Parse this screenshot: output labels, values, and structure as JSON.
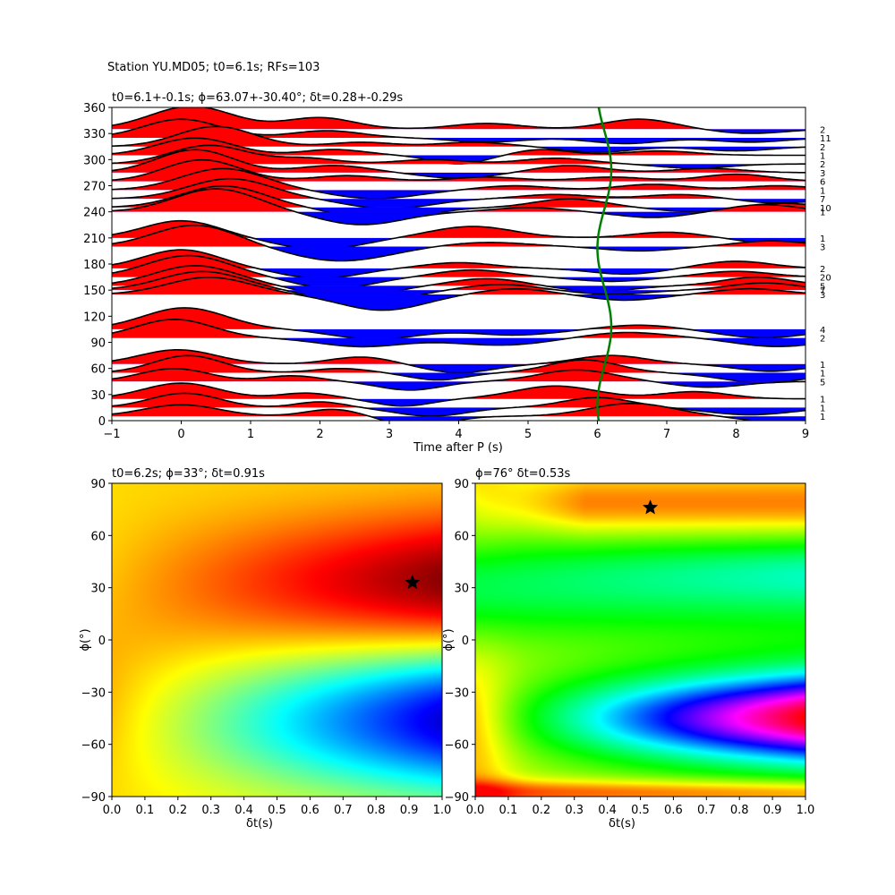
{
  "suptitle": "Station YU.MD05; t0=6.1s; RFs=103",
  "top_panel": {
    "title": "t0=6.1+-0.1s; ϕ=63.07+-30.40°; δt=0.28+-0.29s",
    "xlabel": "Time after P (s)"
  },
  "left_panel": {
    "title": "t0=6.2s; ϕ=33°; δt=0.91s",
    "xlabel": "δt(s)",
    "ylabel": "ϕ(°)"
  },
  "right_panel": {
    "title": "ϕ=76° δt=0.53s",
    "xlabel": "δt(s)",
    "ylabel": "ϕ(°)"
  },
  "chart_data": [
    {
      "type": "line",
      "chart": "receiver-function-section",
      "xlim": [
        -1,
        9
      ],
      "ylim": [
        0,
        360
      ],
      "xticks": [
        -1,
        0,
        1,
        2,
        3,
        4,
        5,
        6,
        7,
        8,
        9
      ],
      "yticks": [
        0,
        30,
        60,
        90,
        120,
        150,
        180,
        210,
        240,
        270,
        300,
        330,
        360
      ],
      "fill_colors": {
        "positive": "#ff0000",
        "negative": "#0000ff"
      },
      "t0_curve_color": "#008000",
      "t0_curve": {
        "mean": 6.1,
        "amplitude": 0.1,
        "period_deg": 180,
        "phase_deg": 63
      },
      "traces": [
        {
          "baz": 5,
          "count": "1",
          "peaks": [
            [
              0,
              0.8,
              0.55
            ],
            [
              2.2,
              0.5,
              0.4
            ],
            [
              3.4,
              -0.7,
              0.45
            ],
            [
              6.5,
              0.9,
              0.6
            ],
            [
              8.6,
              -0.4,
              0.5
            ]
          ]
        },
        {
          "baz": 15,
          "count": "1",
          "peaks": [
            [
              0.05,
              1.0,
              0.5
            ],
            [
              2.0,
              0.4,
              0.35
            ],
            [
              3.6,
              -0.6,
              0.5
            ],
            [
              6.0,
              0.7,
              0.5
            ],
            [
              8.2,
              -0.5,
              0.6
            ]
          ]
        },
        {
          "baz": 25,
          "count": "1",
          "peaks": [
            [
              0.0,
              1.1,
              0.55
            ],
            [
              1.8,
              0.4,
              0.4
            ],
            [
              3.2,
              -0.5,
              0.4
            ],
            [
              5.4,
              0.9,
              0.6
            ],
            [
              7.4,
              0.5,
              0.5
            ]
          ]
        },
        {
          "baz": 45,
          "count": "5",
          "peaks": [
            [
              -0.1,
              0.9,
              0.5
            ],
            [
              1.6,
              0.4,
              0.4
            ],
            [
              3.3,
              -0.6,
              0.45
            ],
            [
              5.7,
              0.8,
              0.55
            ],
            [
              7.6,
              -0.4,
              0.5
            ]
          ]
        },
        {
          "baz": 55,
          "count": "1",
          "peaks": [
            [
              0.1,
              1.2,
              0.5
            ],
            [
              2.3,
              0.3,
              0.4
            ],
            [
              3.7,
              -0.5,
              0.4
            ],
            [
              5.8,
              0.9,
              0.5
            ],
            [
              8.4,
              -0.7,
              0.6
            ]
          ]
        },
        {
          "baz": 65,
          "count": "1",
          "peaks": [
            [
              -0.05,
              1.0,
              0.55
            ],
            [
              2.6,
              0.5,
              0.45
            ],
            [
              4.0,
              -0.6,
              0.5
            ],
            [
              6.2,
              0.6,
              0.5
            ],
            [
              8.5,
              -0.5,
              0.5
            ]
          ]
        },
        {
          "baz": 95,
          "count": "2",
          "peaks": [
            [
              -0.1,
              1.3,
              0.55
            ],
            [
              2.6,
              -0.6,
              0.6
            ],
            [
              4.6,
              -0.5,
              0.7
            ],
            [
              6.4,
              0.4,
              0.6
            ],
            [
              8.6,
              -0.6,
              0.6
            ]
          ]
        },
        {
          "baz": 105,
          "count": "4",
          "peaks": [
            [
              0.05,
              1.5,
              0.6
            ],
            [
              2.8,
              -0.7,
              0.6
            ],
            [
              4.8,
              -0.4,
              0.6
            ],
            [
              6.6,
              0.3,
              0.5
            ],
            [
              8.4,
              -0.6,
              0.6
            ]
          ]
        },
        {
          "baz": 145,
          "count": "3",
          "peaks": [
            [
              0.4,
              1.2,
              0.6
            ],
            [
              2.9,
              -1.1,
              0.6
            ],
            [
              4.8,
              0.4,
              0.5
            ],
            [
              6.4,
              -0.4,
              0.5
            ],
            [
              8.2,
              0.4,
              0.5
            ]
          ]
        },
        {
          "baz": 150,
          "count": "7",
          "peaks": [
            [
              0.3,
              1.3,
              0.6
            ],
            [
              2.6,
              -1.0,
              0.6
            ],
            [
              4.6,
              0.4,
              0.5
            ],
            [
              6.2,
              -0.3,
              0.5
            ],
            [
              8.4,
              0.5,
              0.5
            ]
          ]
        },
        {
          "baz": 155,
          "count": "5",
          "peaks": [
            [
              0.2,
              1.4,
              0.6
            ],
            [
              2.4,
              -0.9,
              0.55
            ],
            [
              4.4,
              0.5,
              0.5
            ],
            [
              6.0,
              -0.4,
              0.5
            ],
            [
              8.3,
              0.6,
              0.5
            ]
          ]
        },
        {
          "baz": 165,
          "count": "20",
          "peaks": [
            [
              0.1,
              1.5,
              0.6
            ],
            [
              2.2,
              -0.8,
              0.55
            ],
            [
              4.2,
              0.5,
              0.5
            ],
            [
              6.2,
              -0.3,
              0.5
            ],
            [
              8.0,
              0.4,
              0.5
            ]
          ]
        },
        {
          "baz": 175,
          "count": "2",
          "peaks": [
            [
              0.0,
              1.3,
              0.55
            ],
            [
              2.0,
              -0.7,
              0.55
            ],
            [
              4.0,
              0.4,
              0.5
            ],
            [
              6.4,
              -0.4,
              0.5
            ],
            [
              8.0,
              0.5,
              0.5
            ]
          ]
        },
        {
          "baz": 200,
          "count": "3",
          "peaks": [
            [
              0.2,
              1.5,
              0.6
            ],
            [
              2.3,
              -1.0,
              0.7
            ],
            [
              4.4,
              0.3,
              0.6
            ],
            [
              6.6,
              -0.3,
              0.5
            ],
            [
              8.5,
              0.4,
              0.5
            ]
          ]
        },
        {
          "baz": 210,
          "count": "1",
          "peaks": [
            [
              0.0,
              1.2,
              0.55
            ],
            [
              2.0,
              -0.8,
              0.6
            ],
            [
              4.2,
              0.8,
              0.6
            ],
            [
              7.0,
              0.4,
              0.5
            ],
            [
              8.6,
              -0.4,
              0.5
            ]
          ]
        },
        {
          "baz": 240,
          "count": "1",
          "peaks": [
            [
              0.5,
              1.6,
              0.6
            ],
            [
              2.6,
              -0.9,
              0.6
            ],
            [
              5.0,
              0.3,
              0.5
            ],
            [
              6.8,
              -0.4,
              0.5
            ],
            [
              8.4,
              0.5,
              0.5
            ]
          ]
        },
        {
          "baz": 245,
          "count": "10",
          "peaks": [
            [
              0.6,
              1.5,
              0.6
            ],
            [
              2.9,
              -0.9,
              0.6
            ],
            [
              5.6,
              0.6,
              0.5
            ],
            [
              7.4,
              -0.3,
              0.5
            ],
            [
              8.6,
              0.3,
              0.5
            ]
          ]
        },
        {
          "baz": 255,
          "count": "7",
          "peaks": [
            [
              0.7,
              1.4,
              0.6
            ],
            [
              3.0,
              -0.7,
              0.6
            ],
            [
              5.4,
              0.3,
              0.5
            ],
            [
              7.2,
              0.3,
              0.5
            ],
            [
              8.6,
              -0.3,
              0.5
            ]
          ]
        },
        {
          "baz": 265,
          "count": "1",
          "peaks": [
            [
              0.6,
              1.5,
              0.6
            ],
            [
              2.8,
              -0.6,
              0.6
            ],
            [
              4.8,
              0.3,
              0.5
            ],
            [
              6.8,
              0.4,
              0.5
            ],
            [
              8.6,
              0.3,
              0.5
            ]
          ]
        },
        {
          "baz": 275,
          "count": "6",
          "peaks": [
            [
              0.3,
              1.5,
              0.55
            ],
            [
              2.4,
              0.4,
              0.5
            ],
            [
              4.4,
              0.3,
              0.5
            ],
            [
              6.2,
              0.3,
              0.5
            ],
            [
              8.0,
              0.5,
              0.5
            ]
          ]
        },
        {
          "baz": 285,
          "count": "3",
          "peaks": [
            [
              0.2,
              1.6,
              0.55
            ],
            [
              2.2,
              0.5,
              0.5
            ],
            [
              4.0,
              -0.4,
              0.5
            ],
            [
              5.6,
              0.5,
              0.5
            ],
            [
              7.6,
              0.3,
              0.5
            ]
          ]
        },
        {
          "baz": 295,
          "count": "2",
          "peaks": [
            [
              0.4,
              1.3,
              0.55
            ],
            [
              1.8,
              0.4,
              0.45
            ],
            [
              3.6,
              0.3,
              0.5
            ],
            [
              5.4,
              0.4,
              0.5
            ],
            [
              7.4,
              -0.3,
              0.5
            ]
          ]
        },
        {
          "baz": 305,
          "count": "1",
          "peaks": [
            [
              0.2,
              1.2,
              0.55
            ],
            [
              2.2,
              0.4,
              0.45
            ],
            [
              4.0,
              -0.6,
              0.4
            ],
            [
              5.2,
              0.4,
              0.4
            ],
            [
              6.9,
              0.3,
              0.5
            ]
          ]
        },
        {
          "baz": 315,
          "count": "2",
          "peaks": [
            [
              0.5,
              1.4,
              0.55
            ],
            [
              2.6,
              0.3,
              0.45
            ],
            [
              4.2,
              0.3,
              0.5
            ],
            [
              6.0,
              -0.4,
              0.5
            ],
            [
              8.0,
              -0.3,
              0.5
            ]
          ]
        },
        {
          "baz": 325,
          "count": "11",
          "peaks": [
            [
              0.0,
              1.3,
              0.55
            ],
            [
              2.1,
              0.5,
              0.5
            ],
            [
              4.4,
              -0.3,
              0.5
            ],
            [
              6.4,
              -0.4,
              0.5
            ],
            [
              8.2,
              -0.3,
              0.5
            ]
          ]
        },
        {
          "baz": 335,
          "count": "2",
          "peaks": [
            [
              0.15,
              1.6,
              0.6
            ],
            [
              2.0,
              0.8,
              0.5
            ],
            [
              4.4,
              0.4,
              0.5
            ],
            [
              6.6,
              0.7,
              0.5
            ],
            [
              8.2,
              -0.3,
              0.5
            ]
          ]
        }
      ]
    },
    {
      "type": "heatmap",
      "chart": "splitting-misfit-left",
      "xlim": [
        0.0,
        1.0
      ],
      "ylim": [
        -90,
        90
      ],
      "xticks": [
        0.0,
        0.1,
        0.2,
        0.3,
        0.4,
        0.5,
        0.6,
        0.7,
        0.8,
        0.9,
        1.0
      ],
      "yticks": [
        -90,
        -60,
        -30,
        0,
        30,
        60,
        90
      ],
      "colormap": "jet",
      "best": {
        "dt": 0.91,
        "phi": 33
      },
      "marker": "star"
    },
    {
      "type": "heatmap",
      "chart": "splitting-misfit-right",
      "xlim": [
        0.0,
        1.0
      ],
      "ylim": [
        -90,
        90
      ],
      "xticks": [
        0.0,
        0.1,
        0.2,
        0.3,
        0.4,
        0.5,
        0.6,
        0.7,
        0.8,
        0.9,
        1.0
      ],
      "yticks": [
        -90,
        -60,
        -30,
        0,
        30,
        60,
        90
      ],
      "colormap": "hsv",
      "best": {
        "dt": 0.53,
        "phi": 76
      },
      "marker": "star"
    }
  ]
}
